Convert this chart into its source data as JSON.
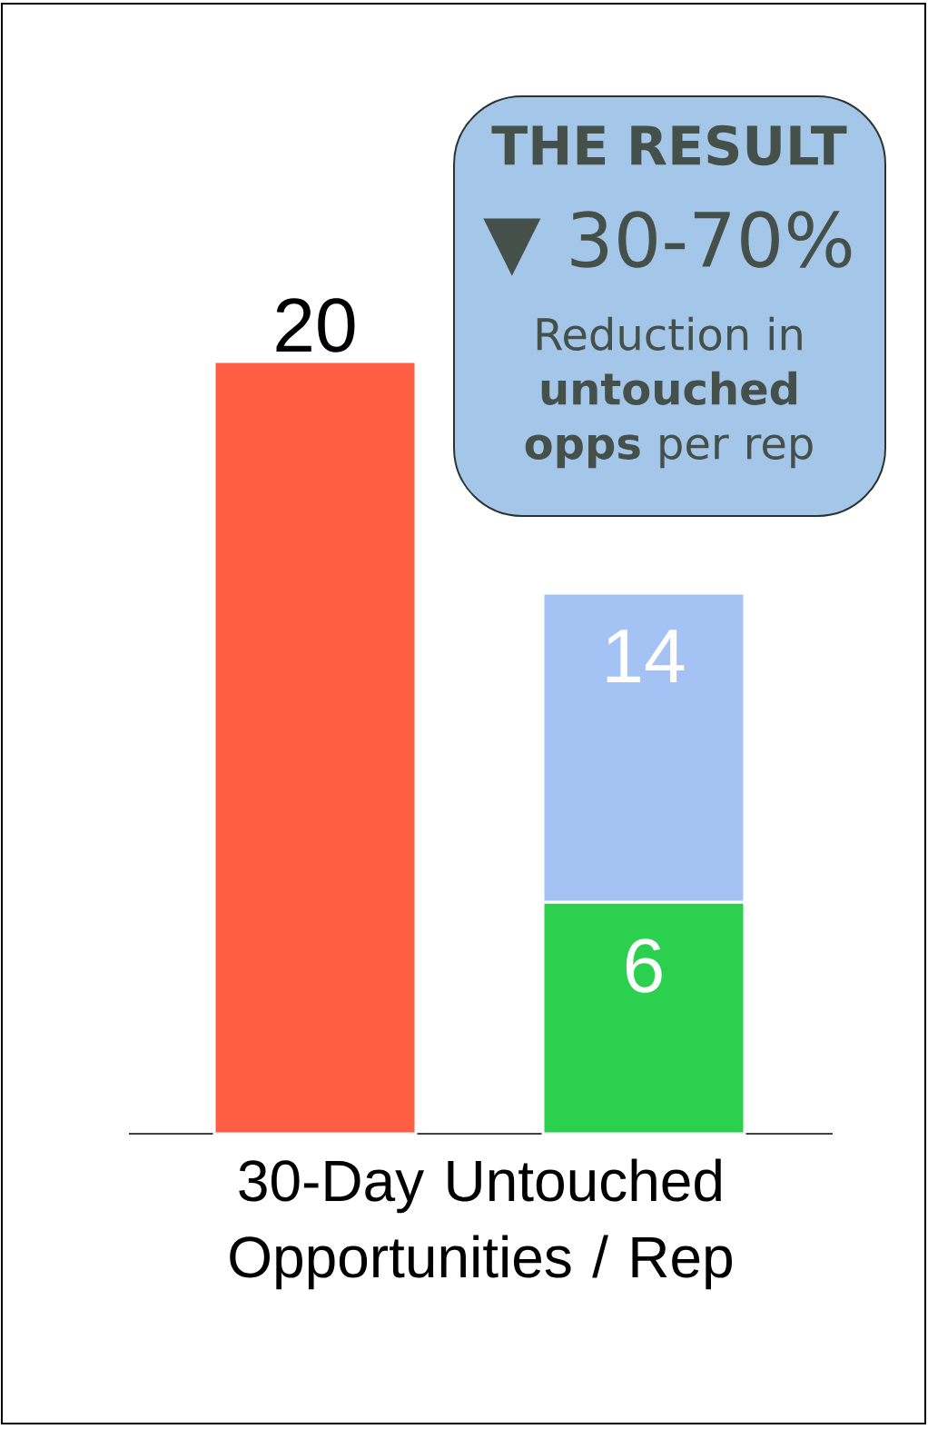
{
  "chart_data": {
    "type": "bar",
    "stacked": true,
    "categories": [
      null,
      null
    ],
    "xlabel": "30-Day Untouched Opportunities / Rep",
    "series": [
      {
        "colors": [
          "#ff5e45",
          "#2bd04f"
        ],
        "values": [
          20,
          6
        ],
        "value_labels": [
          null,
          "6"
        ]
      },
      {
        "color": "#a4c2f4",
        "values": [
          null,
          8
        ]
      }
    ],
    "totals": [
      "20",
      "14"
    ],
    "annotations": [
      "THE RESULT",
      "▼ 30-70%",
      "Reduction in **untouched opps** per rep"
    ]
  }
}
